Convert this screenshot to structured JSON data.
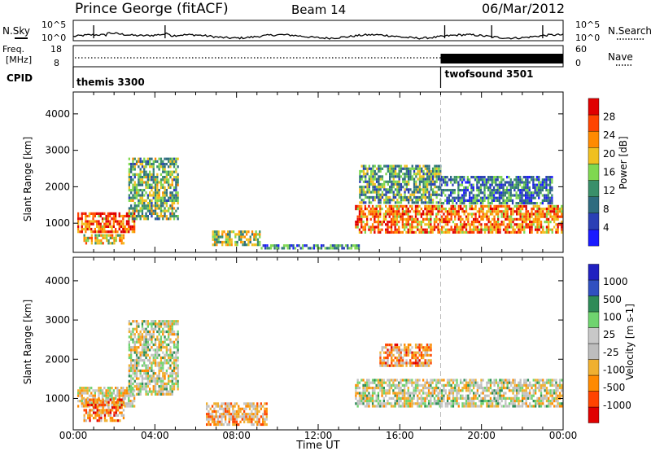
{
  "header": {
    "station": "Prince George (fitACF)",
    "beam": "Beam 14",
    "date": "06/Mar/2012"
  },
  "noise_panel": {
    "left_label": "N.Sky",
    "right_label": "N.Search",
    "left_ticks": [
      "10^5",
      "10^0"
    ],
    "right_ticks": [
      "10^5",
      "10^0"
    ]
  },
  "freq_panel": {
    "left_label_1": "Freq.",
    "left_label_2": "[MHz]",
    "left_ticks": [
      "18",
      "8"
    ],
    "right_label": "Nave",
    "right_ticks": [
      "60",
      "0"
    ]
  },
  "cpid_panel": {
    "label": "CPID",
    "segments": [
      {
        "name": "themis 3300",
        "start": 0,
        "end": 18
      },
      {
        "name": "twofsound 3501",
        "start": 18,
        "end": 24
      }
    ]
  },
  "colors": {
    "power": [
      "#1a1aff",
      "#2a3fb5",
      "#2e6b7f",
      "#3a8f6a",
      "#7fd850",
      "#f0c020",
      "#ff8a00",
      "#ff4400",
      "#e00000"
    ],
    "velocity": [
      "#e00000",
      "#ff4400",
      "#ff8a00",
      "#f0b030",
      "#bdbdbd",
      "#c8c8c8",
      "#6fd46f",
      "#2e8b57",
      "#3050c0",
      "#2020c0"
    ],
    "line": "#000000",
    "marker": "#bbbbbb"
  },
  "chart_data": [
    {
      "type": "heatmap",
      "quantity": "Power",
      "xlabel": "Time UT",
      "ylabel": "Slant Range [km]",
      "yticks": [
        "1000",
        "2000",
        "3000",
        "4000"
      ],
      "ylim": [
        200,
        4600
      ],
      "colorbar_label": "Power [dB]",
      "colorbar_ticks": [
        "4",
        "8",
        "12",
        "16",
        "20",
        "24",
        "28"
      ],
      "regions": [
        {
          "t0": 0.2,
          "t1": 3.0,
          "r0": 750,
          "r1": 1300,
          "level": 0.8
        },
        {
          "t0": 2.7,
          "t1": 5.2,
          "r0": 1100,
          "r1": 2800,
          "level": 0.45
        },
        {
          "t0": 0.5,
          "t1": 2.5,
          "r0": 400,
          "r1": 700,
          "level": 0.6
        },
        {
          "t0": 6.8,
          "t1": 9.2,
          "r0": 350,
          "r1": 800,
          "level": 0.5
        },
        {
          "t0": 9.0,
          "t1": 14.0,
          "r0": 280,
          "r1": 420,
          "level": 0.3
        },
        {
          "t0": 13.8,
          "t1": 24.0,
          "r0": 700,
          "r1": 1500,
          "level": 0.75
        },
        {
          "t0": 14.0,
          "t1": 18.0,
          "r0": 1500,
          "r1": 2600,
          "level": 0.4
        },
        {
          "t0": 18.0,
          "t1": 23.5,
          "r0": 1500,
          "r1": 2300,
          "level": 0.3
        }
      ]
    },
    {
      "type": "heatmap",
      "quantity": "Velocity",
      "xlabel": "Time UT",
      "ylabel": "Slant Range [km]",
      "yticks": [
        "1000",
        "2000",
        "3000",
        "4000"
      ],
      "ylim": [
        200,
        4600
      ],
      "colorbar_label": "Velocity [m s-1]",
      "colorbar_ticks": [
        "-1000",
        "-500",
        "-100",
        "-25",
        "25",
        "100",
        "500",
        "1000"
      ],
      "regions": [
        {
          "t0": 0.2,
          "t1": 3.0,
          "r0": 750,
          "r1": 1300,
          "level": 0.45
        },
        {
          "t0": 0.5,
          "t1": 2.5,
          "r0": 400,
          "r1": 1000,
          "level": 0.25
        },
        {
          "t0": 2.7,
          "t1": 5.2,
          "r0": 1100,
          "r1": 3000,
          "level": 0.5
        },
        {
          "t0": 6.5,
          "t1": 9.5,
          "r0": 300,
          "r1": 900,
          "level": 0.35
        },
        {
          "t0": 13.8,
          "t1": 24.0,
          "r0": 750,
          "r1": 1500,
          "level": 0.5
        },
        {
          "t0": 15.0,
          "t1": 17.6,
          "r0": 1800,
          "r1": 2400,
          "level": 0.3
        }
      ]
    }
  ],
  "xaxis": {
    "label": "Time UT",
    "ticks": [
      "00:00",
      "04:00",
      "08:00",
      "12:00",
      "16:00",
      "20:00",
      "00:00"
    ],
    "range_hours": [
      0,
      24
    ],
    "marker_hour": 18
  }
}
